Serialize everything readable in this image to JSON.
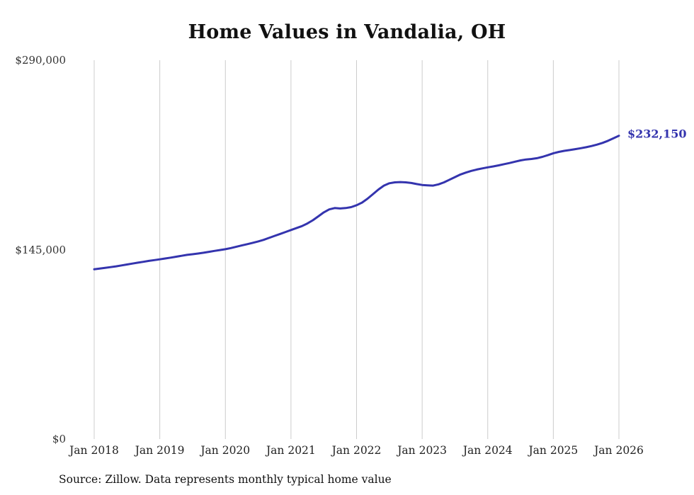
{
  "chart_data": {
    "type": "line",
    "title": "Home Values in Vandalia, OH",
    "source": "Source: Zillow. Data represents monthly typical home value",
    "end_label": "$232,150",
    "xlabel": "",
    "ylabel": "",
    "ylim": [
      0,
      290000
    ],
    "grid": "vertical-only",
    "colors": {
      "line": "#3434ae",
      "grid": "#cccccc",
      "title": "#111111",
      "axis_text": "#333333"
    },
    "y_ticks": [
      {
        "value": 0,
        "label": "$0"
      },
      {
        "value": 145000,
        "label": "$145,000"
      },
      {
        "value": 290000,
        "label": "$290,000"
      }
    ],
    "x_tick_labels": [
      "Jan 2018",
      "Jan 2019",
      "Jan 2020",
      "Jan 2021",
      "Jan 2022",
      "Jan 2023",
      "Jan 2024",
      "Jan 2025",
      "Jan 2026"
    ],
    "x_interval": "monthly",
    "series_name": "Typical home value",
    "values": [
      130000,
      130500,
      131000,
      131600,
      132200,
      132900,
      133600,
      134300,
      135000,
      135700,
      136400,
      137000,
      137600,
      138200,
      138900,
      139600,
      140300,
      141000,
      141500,
      142000,
      142600,
      143300,
      144000,
      144700,
      145300,
      146200,
      147200,
      148200,
      149200,
      150200,
      151300,
      152500,
      154000,
      155500,
      157000,
      158500,
      160000,
      161500,
      163000,
      165000,
      167500,
      170500,
      173500,
      175800,
      176800,
      176500,
      176800,
      177500,
      179000,
      181000,
      184000,
      187500,
      191000,
      194000,
      195800,
      196500,
      196700,
      196500,
      196000,
      195200,
      194500,
      194200,
      194000,
      195000,
      196500,
      198500,
      200500,
      202500,
      204000,
      205300,
      206300,
      207200,
      208000,
      208700,
      209500,
      210400,
      211300,
      212300,
      213300,
      214000,
      214400,
      215000,
      216000,
      217300,
      218800,
      219800,
      220600,
      221200,
      221900,
      222600,
      223400,
      224300,
      225400,
      226700,
      228300,
      230200,
      232150
    ]
  }
}
